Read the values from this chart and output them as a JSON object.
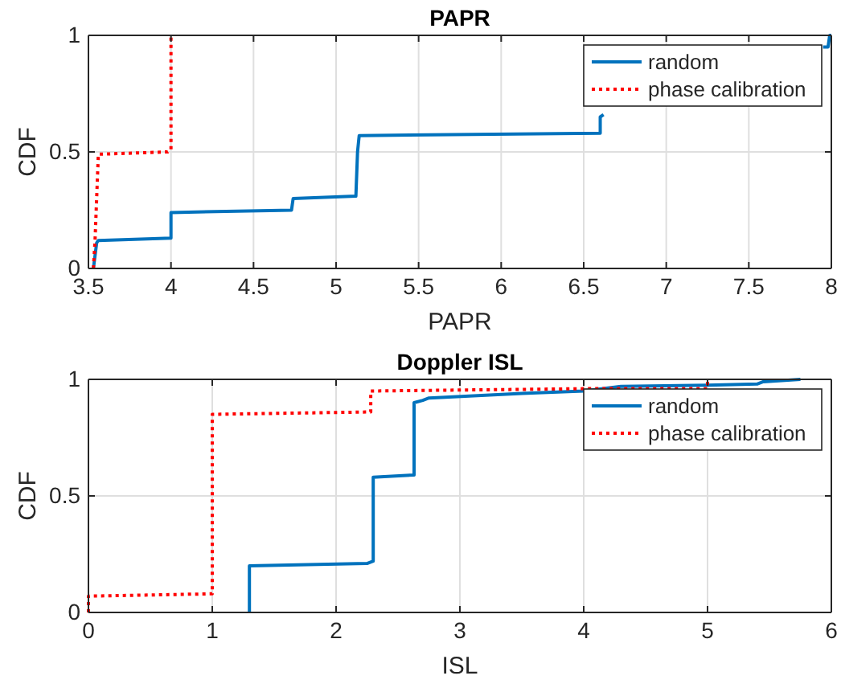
{
  "chart_data": [
    {
      "type": "line",
      "title": "PAPR",
      "xlabel": "PAPR",
      "ylabel": "CDF",
      "xlim": [
        3.5,
        8
      ],
      "xticks": [
        3.5,
        4,
        4.5,
        5,
        5.5,
        6,
        6.5,
        7,
        7.5,
        8
      ],
      "ylim": [
        0,
        1
      ],
      "yticks": [
        0,
        0.5,
        1
      ],
      "grid": true,
      "legend": "top right",
      "series": [
        {
          "name": "random",
          "color": "#0072bd",
          "line_style": "solid",
          "x": [
            3.53,
            3.55,
            3.56,
            4.0,
            4.0,
            4.73,
            4.74,
            5.12,
            5.13,
            5.14,
            6.6,
            6.6,
            6.62,
            null,
            7.95,
            7.98,
            7.99,
            8.0
          ],
          "values": [
            0,
            0.11,
            0.12,
            0.13,
            0.24,
            0.25,
            0.3,
            0.31,
            0.5,
            0.57,
            0.58,
            0.65,
            0.66,
            null,
            0.95,
            0.95,
            1,
            1
          ]
        },
        {
          "name": "phase calibration",
          "color": "#ff0000",
          "line_style": "dotted",
          "x": [
            3.53,
            3.54,
            3.56,
            3.98,
            4.0,
            4.0
          ],
          "values": [
            0,
            0.12,
            0.49,
            0.5,
            0.51,
            1
          ]
        }
      ]
    },
    {
      "type": "line",
      "title": "Doppler ISL",
      "xlabel": "ISL",
      "ylabel": "CDF",
      "xlim": [
        0,
        6
      ],
      "xticks": [
        0,
        1,
        2,
        3,
        4,
        5,
        6
      ],
      "ylim": [
        0,
        1
      ],
      "yticks": [
        0,
        0.5,
        1
      ],
      "grid": true,
      "legend": "top right",
      "series": [
        {
          "name": "random",
          "color": "#0072bd",
          "line_style": "solid",
          "x": [
            1.3,
            1.3,
            2.25,
            2.3,
            2.3,
            2.63,
            2.63,
            2.7,
            2.75,
            3.5,
            4.0,
            4.3,
            5.0,
            5.4,
            5.45,
            5.75
          ],
          "values": [
            0,
            0.2,
            0.21,
            0.22,
            0.58,
            0.59,
            0.9,
            0.91,
            0.92,
            0.94,
            0.95,
            0.97,
            0.975,
            0.98,
            0.99,
            1
          ]
        },
        {
          "name": "phase calibration",
          "color": "#ff0000",
          "line_style": "dotted",
          "x": [
            0,
            0,
            1,
            1,
            2.25,
            2.28,
            2.28,
            4.0,
            5.0,
            5.0
          ],
          "values": [
            0,
            0.07,
            0.08,
            0.85,
            0.86,
            0.86,
            0.95,
            0.96,
            0.96,
            1
          ]
        }
      ]
    }
  ]
}
